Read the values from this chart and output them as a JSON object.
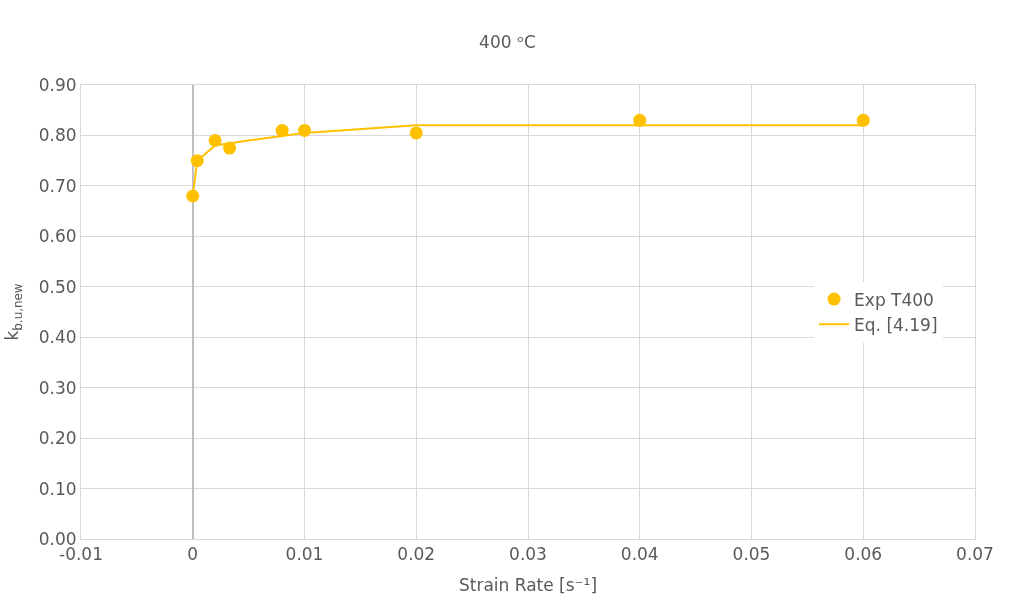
{
  "chart_data": {
    "type": "scatter",
    "title": "400 ᵒC",
    "xlabel": "Strain Rate [s⁻¹]",
    "ylabel": "k$_{b.u,new}$",
    "series": [
      {
        "name": "Exp T400",
        "color": "#ffc000",
        "marker": "circle",
        "x": [
          0.0,
          0.0004,
          0.002,
          0.0033,
          0.008,
          0.01,
          0.02,
          0.04,
          0.06
        ],
        "values": [
          0.68,
          0.75,
          0.79,
          0.775,
          0.81,
          0.81,
          0.805,
          0.83,
          0.83
        ]
      },
      {
        "name": "Eq. [4.19]",
        "type": "line",
        "color": "#ffc000",
        "x": [
          0.0,
          0.0004,
          0.002,
          0.005,
          0.01,
          0.02,
          0.04,
          0.06
        ],
        "values": [
          0.68,
          0.75,
          0.78,
          0.79,
          0.805,
          0.82,
          0.82,
          0.82
        ]
      }
    ],
    "xlim": [
      -0.01,
      0.07
    ],
    "xticks": [
      -0.01,
      0,
      0.01,
      0.02,
      0.03,
      0.04,
      0.05,
      0.06,
      0.07
    ],
    "ylim": [
      0,
      0.9
    ],
    "yticks": [
      {
        "value": 0,
        "label": "0.00"
      },
      {
        "value": 0.1,
        "label": "0.10"
      },
      {
        "value": 0.2,
        "label": "0.20"
      },
      {
        "value": 0.3,
        "label": "0.30"
      },
      {
        "value": 0.4,
        "label": "0.40"
      },
      {
        "value": 0.5,
        "label": "0.50"
      },
      {
        "value": 0.6,
        "label": "0.60"
      },
      {
        "value": 0.7,
        "label": "0.70"
      },
      {
        "value": 0.8,
        "label": "0.80"
      },
      {
        "value": 0.9,
        "label": "0.90"
      }
    ],
    "grid": true,
    "legend": "right"
  }
}
